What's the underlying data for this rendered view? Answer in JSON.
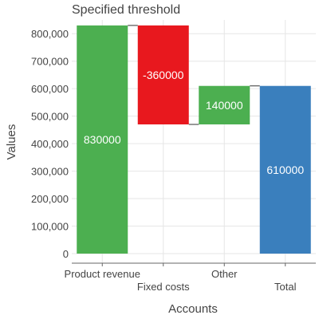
{
  "chart_data": {
    "type": "waterfall",
    "title": "Specified threshold",
    "xlabel": "Accounts",
    "ylabel": "Values",
    "categories": [
      "Product revenue",
      "Fixed costs",
      "Other",
      "Total"
    ],
    "values": [
      830000,
      -360000,
      140000,
      610000
    ],
    "measure": [
      "relative",
      "relative",
      "relative",
      "total"
    ],
    "data_labels": [
      "830000",
      "-360000",
      "140000",
      "610000"
    ],
    "ylim": [
      0,
      850000
    ],
    "yticks": [
      0,
      100000,
      200000,
      300000,
      400000,
      500000,
      600000,
      700000,
      800000
    ],
    "ytick_labels": [
      "0",
      "100,000",
      "200,000",
      "300,000",
      "400,000",
      "500,000",
      "600,000",
      "700,000",
      "800,000"
    ],
    "grid": true,
    "colors": {
      "increase": "#4caf50",
      "decrease": "#e8181e",
      "total": "#3a7fbd",
      "connector": "#333333",
      "grid": "#e6e6e6",
      "axis": "#666666"
    }
  }
}
